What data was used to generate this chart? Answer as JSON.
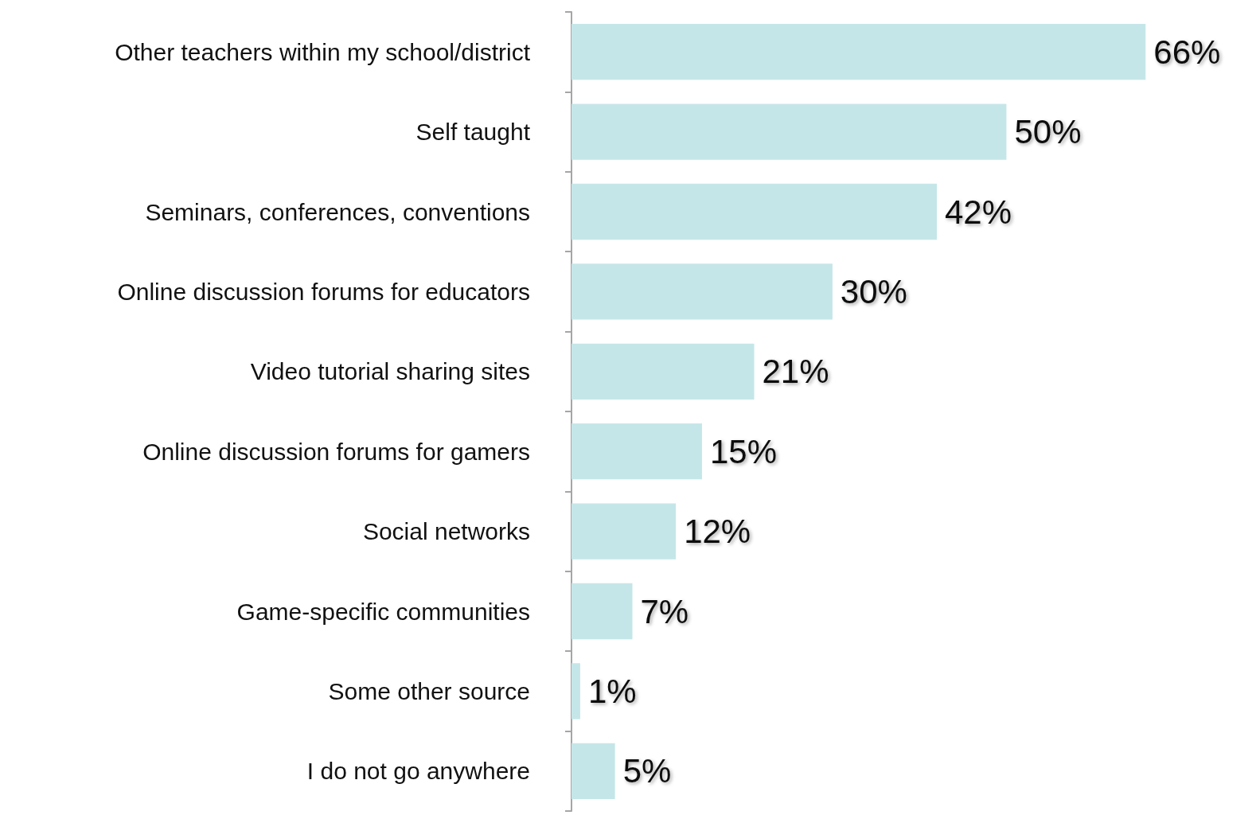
{
  "chart_data": {
    "type": "bar",
    "orientation": "horizontal",
    "categories": [
      "Other teachers within my school/district",
      "Self taught",
      "Seminars, conferences, conventions",
      "Online discussion forums for educators",
      "Video tutorial sharing sites",
      "Online discussion forums for gamers",
      "Social networks",
      "Game-specific communities",
      "Some other source",
      "I do not go anywhere"
    ],
    "values": [
      66,
      50,
      42,
      30,
      21,
      15,
      12,
      7,
      1,
      5
    ],
    "value_labels": [
      "66%",
      "50%",
      "42%",
      "30%",
      "21%",
      "15%",
      "12%",
      "7%",
      "1%",
      "5%"
    ],
    "color": "#c5e6e8"
  }
}
